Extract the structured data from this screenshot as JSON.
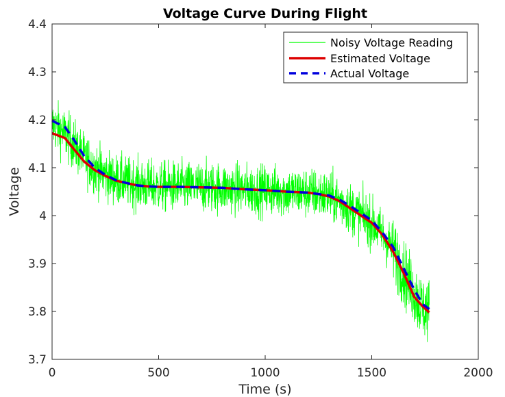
{
  "chart_data": {
    "type": "line",
    "title": "Voltage Curve During Flight",
    "xlabel": "Time (s)",
    "ylabel": "Voltage",
    "xlim": [
      0,
      2000
    ],
    "ylim": [
      3.7,
      4.4
    ],
    "xticks": [
      0,
      500,
      1000,
      1500,
      2000
    ],
    "yticks": [
      3.7,
      3.8,
      3.9,
      4.0,
      4.1,
      4.2,
      4.3,
      4.4
    ],
    "xtick_labels": [
      "0",
      "500",
      "1000",
      "1500",
      "2000"
    ],
    "ytick_labels": [
      "3.7",
      "3.8",
      "3.9",
      "4",
      "4.1",
      "4.2",
      "4.3",
      "4.4"
    ],
    "grid": false,
    "legend_position": "top-right",
    "series": [
      {
        "name": "Noisy Voltage Reading",
        "color": "#00ff00",
        "style": "noisy",
        "center_x": [
          0,
          50,
          100,
          150,
          200,
          250,
          300,
          350,
          400,
          450,
          500,
          600,
          700,
          800,
          900,
          1000,
          1100,
          1200,
          1250,
          1300,
          1350,
          1400,
          1450,
          1500,
          1550,
          1600,
          1650,
          1700,
          1720,
          1740,
          1770
        ],
        "center_y": [
          4.19,
          4.175,
          4.15,
          4.12,
          4.1,
          4.085,
          4.075,
          4.07,
          4.065,
          4.062,
          4.06,
          4.06,
          4.06,
          4.058,
          4.055,
          4.053,
          4.05,
          4.048,
          4.045,
          4.04,
          4.03,
          4.015,
          4.0,
          3.985,
          3.96,
          3.93,
          3.88,
          3.84,
          3.82,
          3.81,
          3.8
        ],
        "noise_amplitude": 0.06
      },
      {
        "name": "Estimated Voltage",
        "color": "#dd0000",
        "style": "solid",
        "x": [
          0,
          60,
          100,
          150,
          200,
          250,
          300,
          350,
          400,
          450,
          500,
          600,
          700,
          800,
          900,
          1000,
          1100,
          1200,
          1250,
          1300,
          1350,
          1400,
          1450,
          1500,
          1550,
          1600,
          1650,
          1700,
          1720,
          1740,
          1770
        ],
        "y": [
          4.172,
          4.162,
          4.14,
          4.113,
          4.095,
          4.083,
          4.073,
          4.068,
          4.063,
          4.061,
          4.06,
          4.06,
          4.059,
          4.058,
          4.055,
          4.053,
          4.05,
          4.048,
          4.045,
          4.04,
          4.03,
          4.015,
          4.0,
          3.985,
          3.96,
          3.925,
          3.88,
          3.83,
          3.82,
          3.81,
          3.798
        ]
      },
      {
        "name": "Actual Voltage",
        "color": "#0000dd",
        "style": "dashed",
        "x": [
          0,
          60,
          100,
          150,
          200,
          250,
          300,
          350,
          400,
          450,
          500,
          600,
          700,
          800,
          900,
          1000,
          1100,
          1200,
          1250,
          1300,
          1350,
          1400,
          1450,
          1500,
          1550,
          1600,
          1650,
          1700,
          1720,
          1740,
          1770
        ],
        "y": [
          4.198,
          4.185,
          4.16,
          4.125,
          4.1,
          4.085,
          4.074,
          4.068,
          4.063,
          4.061,
          4.06,
          4.06,
          4.059,
          4.058,
          4.055,
          4.053,
          4.05,
          4.048,
          4.045,
          4.042,
          4.033,
          4.02,
          4.005,
          3.99,
          3.965,
          3.935,
          3.89,
          3.845,
          3.83,
          3.815,
          3.805
        ]
      }
    ]
  }
}
